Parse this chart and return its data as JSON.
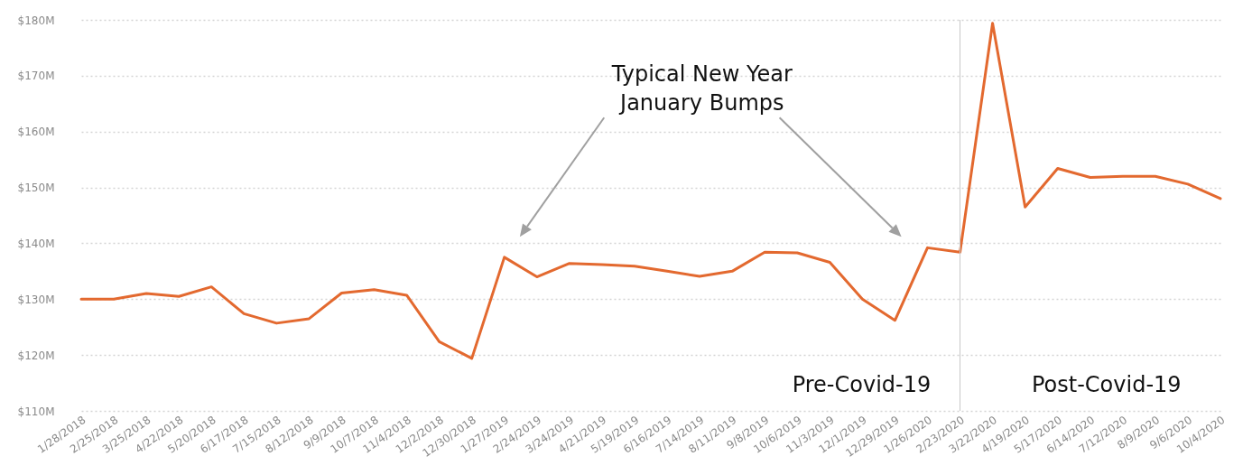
{
  "chart_data": {
    "type": "line",
    "categories": [
      "1/28/2018",
      "2/25/2018",
      "3/25/2018",
      "4/22/2018",
      "5/20/2018",
      "6/17/2018",
      "7/15/2018",
      "8/12/2018",
      "9/9/2018",
      "10/7/2018",
      "11/4/2018",
      "12/2/2018",
      "12/30/2018",
      "1/27/2019",
      "2/24/2019",
      "3/24/2019",
      "4/21/2019",
      "5/19/2019",
      "6/16/2019",
      "7/14/2019",
      "8/11/2019",
      "9/8/2019",
      "10/6/2019",
      "11/3/2019",
      "12/1/2019",
      "12/29/2019",
      "1/26/2020",
      "2/23/2020",
      "3/22/2020",
      "4/19/2020",
      "5/17/2020",
      "6/14/2020",
      "7/12/2020",
      "8/9/2020",
      "9/6/2020",
      "10/4/2020"
    ],
    "series": [
      {
        "color": "#e3692f",
        "values": [
          130,
          130,
          131,
          130.5,
          132.2,
          127.4,
          125.7,
          126.5,
          131.1,
          131.7,
          130.7,
          122.4,
          119.4,
          137.5,
          134,
          136.4,
          136.2,
          135.9,
          135,
          134.1,
          135,
          138.4,
          138.3,
          136.6,
          130,
          126.2,
          139.2,
          138.4,
          179.4,
          146.5,
          153.4,
          151.8,
          152,
          152,
          150.6,
          148
        ]
      }
    ],
    "ylim": [
      110,
      180
    ],
    "yticks": [
      {
        "value": 110,
        "label": "$110M"
      },
      {
        "value": 120,
        "label": "$120M"
      },
      {
        "value": 130,
        "label": "$130M"
      },
      {
        "value": 140,
        "label": "$140M"
      },
      {
        "value": 150,
        "label": "$150M"
      },
      {
        "value": 160,
        "label": "$160M"
      },
      {
        "value": 170,
        "label": "$170M"
      },
      {
        "value": 180,
        "label": "$180M"
      }
    ],
    "grid": "y",
    "ref_lines": [
      {
        "axis": "x",
        "value": "2/23/2020",
        "color": "#c8c8c8"
      }
    ],
    "annotations": [
      "Typical New Year\nJanuary Bumps",
      "Pre-Covid-19",
      "Post-Covid-19"
    ]
  }
}
